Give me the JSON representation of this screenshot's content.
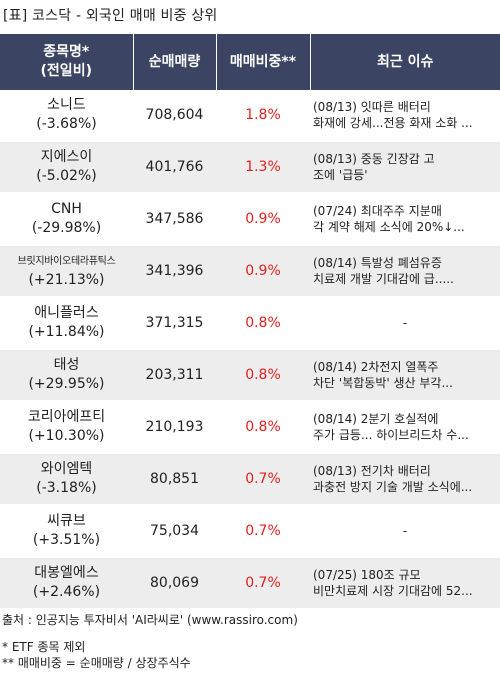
{
  "title": "[표] 코스닥 - 외국인 매매 비중 상위",
  "headers": {
    "name_line1": "종목명*",
    "name_line2": "(전일비)",
    "volume": "순매매량",
    "ratio": "매매비중**",
    "issue": "최근 이슈"
  },
  "rows": [
    {
      "name": "소니드",
      "change": "(-3.68%)",
      "volume": "708,604",
      "ratio": "1.8%",
      "issue1": "(08/13) 잇따른 배터리",
      "issue2": "화재에 강세...전용 화재 소화 ..."
    },
    {
      "name": "지에스이",
      "change": "(-5.02%)",
      "volume": "401,766",
      "ratio": "1.3%",
      "issue1": "(08/13) 중동 긴장감 고",
      "issue2": "조에 '급등'"
    },
    {
      "name": "CNH",
      "change": "(-29.98%)",
      "volume": "347,586",
      "ratio": "0.9%",
      "issue1": "(07/24) 최대주주 지분매",
      "issue2": "각 계약 해제 소식에 20%↓..."
    },
    {
      "name": "브릿지바이오테라퓨틱스",
      "change": "(+21.13%)",
      "volume": "341,396",
      "ratio": "0.9%",
      "issue1": "(08/14) 특발성 폐섬유증",
      "issue2": "치료제 개발 기대감에 급....."
    },
    {
      "name": "애니플러스",
      "change": "(+11.84%)",
      "volume": "371,315",
      "ratio": "0.8%",
      "issue1": "-",
      "issue2": ""
    },
    {
      "name": "태성",
      "change": "(+29.95%)",
      "volume": "203,311",
      "ratio": "0.8%",
      "issue1": "(08/14) 2차전지 열폭주",
      "issue2": "차단 '복합동박' 생산 부각..."
    },
    {
      "name": "코리아에프티",
      "change": "(+10.30%)",
      "volume": "210,193",
      "ratio": "0.8%",
      "issue1": "(08/14) 2분기 호실적에",
      "issue2": "주가 급등... 하이브리드차 수..."
    },
    {
      "name": "와이엠텍",
      "change": "(-3.18%)",
      "volume": "80,851",
      "ratio": "0.7%",
      "issue1": "(08/13) 전기차 배터리",
      "issue2": "과충전 방지 기술 개발 소식에..."
    },
    {
      "name": "씨큐브",
      "change": "(+3.51%)",
      "volume": "75,034",
      "ratio": "0.7%",
      "issue1": "-",
      "issue2": ""
    },
    {
      "name": "대봉엘에스",
      "change": "(+2.46%)",
      "volume": "80,069",
      "ratio": "0.7%",
      "issue1": "(07/25) 180조 규모",
      "issue2": "비만치료제 시장 기대감에 52..."
    }
  ],
  "footer": {
    "source": "출처 : 인공지능 투자비서 'AI라씨로' (www.rassiro.com)",
    "note1": "* ETF 종목 제외",
    "note2": "** 매매비중 = 순매매량 / 상장주식수"
  }
}
